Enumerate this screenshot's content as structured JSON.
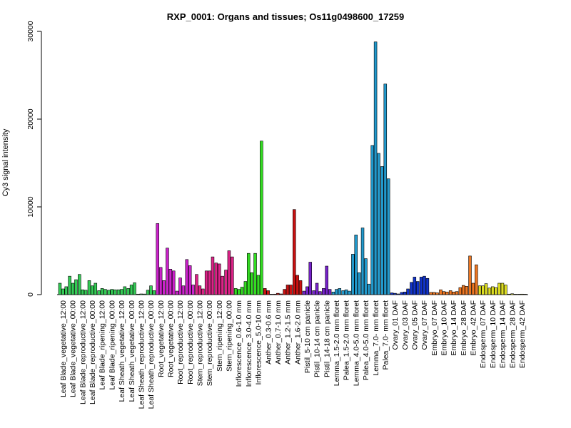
{
  "chart_data": {
    "type": "bar",
    "title": "RXP_0001: Organs and tissues; Os11g0498600_17259",
    "xlabel": "",
    "ylabel": "Cy3 signal intensity",
    "ylim": [
      0,
      30000
    ],
    "yticks": [
      0,
      10000,
      20000,
      30000
    ],
    "grid": false,
    "legend": "none",
    "categories": [
      "Leaf Blade_vegetative_12:00",
      "Leaf Blade_vegetative_00:00",
      "Leaf Blade_reproductive_12:00",
      "Leaf Blade_reproductive_00:00",
      "Leaf Blade_ripening_12:00",
      "Leaf Blade_ripening_00:00",
      "Leaf Sheath_vegetative_12:00",
      "Leaf Sheath_vegetative_00:00",
      "Leaf Sheath_reproductive_12:00",
      "Leaf Sheath_reproductive_00:00",
      "Root_vegetative_12:00",
      "Root_vegetative_00:00",
      "Root_reproductive_12:00",
      "Root_reproductive_00:00",
      "Stem_reproductive_12:00",
      "Stem_reproductive_00:00",
      "Stem_ripening_12:00",
      "Stem_ripening_00:00",
      "Inflorescence_0.6-1.0 mm",
      "Inflorescence_3.0-4.0 mm",
      "Inflorescence_5.0-10 mm",
      "Anther_0.3-0.6 mm",
      "Anther_0.7-1.0 mm",
      "Anther_1.2-1.5 mm",
      "Anther_1.6-2.0 mm",
      "Pistil_5-10 cm panicle",
      "Pistil_10-14 cm panicle",
      "Pistil_14-18 cm panicle",
      "Lemma_1.5-2.0 mm floret",
      "Palea_1.5-2.0 mm floret",
      "Lemma_4.0-5.0 mm floret",
      "Palea_4.0-5.0 mm floret",
      "Lemma_7.0- mm floret",
      "Palea_7.0- mm floret",
      "Ovary_01 DAF",
      "Ovary_03 DAF",
      "Ovary_05 DAF",
      "Ovary_07 DAF",
      "Embryo_07 DAF",
      "Embryo_10 DAF",
      "Embryo_14 DAF",
      "Embryo_28 DAF",
      "Embryo_42 DAF",
      "Endosperm_07 DAF",
      "Endosperm_10 DAF",
      "Endosperm_14 DAF",
      "Endosperm_28 DAF",
      "Endosperm_42 DAF"
    ],
    "group_colors": [
      "#33cc55",
      "#33cc55",
      "#33cc55",
      "#33cc55",
      "#33cc55",
      "#33cc55",
      "#33cc55",
      "#33cc55",
      "#33cc55",
      "#33cc55",
      "#cc22cc",
      "#cc22cc",
      "#cc22cc",
      "#cc22cc",
      "#dd2288",
      "#dd2288",
      "#dd2288",
      "#dd2288",
      "#33dd22",
      "#33dd22",
      "#33dd22",
      "#cc1111",
      "#cc1111",
      "#cc1111",
      "#cc1111",
      "#7722cc",
      "#7722cc",
      "#7722cc",
      "#2299cc",
      "#2299cc",
      "#2299cc",
      "#2299cc",
      "#2299cc",
      "#2299cc",
      "#1133cc",
      "#1133cc",
      "#1133cc",
      "#1133cc",
      "#ee7722",
      "#ee7722",
      "#ee7722",
      "#ee7722",
      "#ee7722",
      "#dddd22",
      "#dddd22",
      "#dddd22",
      "#dddd22",
      "#dddd22"
    ],
    "values_per_group": [
      [
        1300,
        650,
        900
      ],
      [
        2100,
        1300,
        1700
      ],
      [
        2300,
        550,
        500
      ],
      [
        1600,
        1000,
        1300
      ],
      [
        450,
        700,
        600
      ],
      [
        500,
        600,
        550
      ],
      [
        550,
        600,
        900
      ],
      [
        700,
        1100,
        1350
      ],
      [
        60,
        80,
        70
      ],
      [
        500,
        1000,
        450
      ],
      [
        8100,
        3100,
        1600
      ],
      [
        5300,
        2900,
        2700
      ],
      [
        400,
        1900,
        1000
      ],
      [
        4000,
        3300,
        1100
      ],
      [
        2300,
        1000,
        650
      ],
      [
        2700,
        2700,
        4300
      ],
      [
        3600,
        3500,
        2100
      ],
      [
        2800,
        5000,
        4300
      ],
      [
        700,
        600,
        850
      ],
      [
        1500,
        4700,
        2500
      ],
      [
        4700,
        2200,
        17500
      ],
      [
        700,
        450,
        50
      ],
      [
        60,
        150,
        80
      ],
      [
        600,
        1100,
        1100
      ],
      [
        9700,
        2200,
        1600
      ],
      [
        400,
        900,
        3700
      ],
      [
        450,
        1300,
        350
      ],
      [
        700,
        3250,
        600
      ],
      [
        300,
        600,
        700
      ],
      [
        450,
        550,
        400
      ],
      [
        4600,
        6800,
        2500
      ],
      [
        7600,
        4100,
        1200
      ],
      [
        17000,
        28800,
        16100
      ],
      [
        14600,
        24000,
        13200
      ],
      [
        200,
        150,
        80
      ],
      [
        250,
        300,
        650
      ],
      [
        1400,
        2000,
        1500
      ],
      [
        2000,
        2100,
        1850
      ],
      [
        250,
        250,
        200
      ],
      [
        550,
        350,
        300
      ],
      [
        450,
        300,
        350
      ],
      [
        800,
        1050,
        950
      ],
      [
        4400,
        1300,
        3400
      ],
      [
        1000,
        1000,
        1250
      ],
      [
        750,
        900,
        800
      ],
      [
        1300,
        1300,
        1100
      ],
      [
        60,
        100,
        50
      ],
      [
        50,
        60,
        50
      ]
    ]
  }
}
